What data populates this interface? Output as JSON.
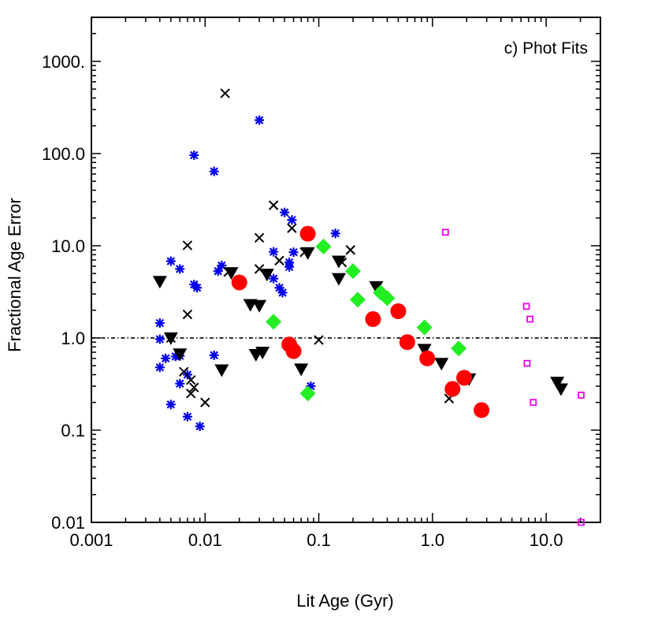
{
  "chart_data": {
    "type": "scatter",
    "title": "",
    "panel_label": "c) Phot Fits",
    "xlabel": "Lit Age (Gyr)",
    "ylabel": "Fractional Age Error",
    "xscale": "log",
    "yscale": "log",
    "xlim": [
      0.001,
      30
    ],
    "ylim": [
      0.01,
      3000
    ],
    "x_ticks": [
      {
        "value": 0.001,
        "label": "0.001"
      },
      {
        "value": 0.01,
        "label": "0.01"
      },
      {
        "value": 0.1,
        "label": "0.1"
      },
      {
        "value": 1,
        "label": "1.0"
      },
      {
        "value": 10,
        "label": "10.0"
      }
    ],
    "y_ticks": [
      {
        "value": 0.01,
        "label": "0.01"
      },
      {
        "value": 0.1,
        "label": "0.1"
      },
      {
        "value": 1,
        "label": "1.0"
      },
      {
        "value": 10,
        "label": "10.0"
      },
      {
        "value": 100,
        "label": "100.0"
      },
      {
        "value": 1000,
        "label": "1000."
      }
    ],
    "reference_line": {
      "y": 1.0,
      "style": "dash-dot"
    },
    "colors": {
      "blue": "#0000ee",
      "black": "#000000",
      "red": "#ff0000",
      "green": "#22ee22",
      "magenta": "#ee00ee"
    },
    "series": [
      {
        "name": "blue-asterisk",
        "marker": "asterisk",
        "color": "#0000ee",
        "points": [
          [
            0.004,
            1.45
          ],
          [
            0.004,
            0.97
          ],
          [
            0.004,
            0.48
          ],
          [
            0.0045,
            0.6
          ],
          [
            0.005,
            6.8
          ],
          [
            0.005,
            0.19
          ],
          [
            0.0055,
            0.63
          ],
          [
            0.006,
            5.6
          ],
          [
            0.006,
            0.64
          ],
          [
            0.006,
            0.32
          ],
          [
            0.007,
            0.4
          ],
          [
            0.007,
            0.14
          ],
          [
            0.008,
            96
          ],
          [
            0.008,
            3.8
          ],
          [
            0.0085,
            3.5
          ],
          [
            0.009,
            0.11
          ],
          [
            0.012,
            64
          ],
          [
            0.012,
            0.65
          ],
          [
            0.013,
            5.3
          ],
          [
            0.014,
            6.1
          ],
          [
            0.03,
            230
          ],
          [
            0.04,
            8.6
          ],
          [
            0.045,
            3.5
          ],
          [
            0.048,
            3.1
          ],
          [
            0.05,
            23
          ],
          [
            0.055,
            5.9
          ],
          [
            0.055,
            6.6
          ],
          [
            0.058,
            19
          ],
          [
            0.06,
            8.5
          ],
          [
            0.14,
            13.6
          ],
          [
            0.085,
            0.3
          ],
          [
            0.04,
            4.4
          ]
        ]
      },
      {
        "name": "black-x",
        "marker": "x",
        "color": "#000000",
        "points": [
          [
            0.015,
            450
          ],
          [
            0.007,
            10.1
          ],
          [
            0.007,
            1.8
          ],
          [
            0.0065,
            0.43
          ],
          [
            0.0075,
            0.35
          ],
          [
            0.008,
            0.29
          ],
          [
            0.0075,
            0.25
          ],
          [
            0.01,
            0.2
          ],
          [
            0.016,
            5.2
          ],
          [
            0.03,
            12.2
          ],
          [
            0.03,
            5.6
          ],
          [
            0.04,
            27.5
          ],
          [
            0.045,
            6.9
          ],
          [
            0.058,
            15.5
          ],
          [
            0.075,
            8.5
          ],
          [
            0.1,
            0.95
          ],
          [
            0.16,
            6.6
          ],
          [
            0.19,
            9.0
          ],
          [
            1.4,
            0.22
          ],
          [
            0.005,
            1.0
          ]
        ]
      },
      {
        "name": "black-triangle",
        "marker": "triangle-down",
        "color": "#000000",
        "points": [
          [
            0.004,
            4.1
          ],
          [
            0.005,
            1.0
          ],
          [
            0.006,
            0.67
          ],
          [
            0.014,
            0.45
          ],
          [
            0.017,
            5.1
          ],
          [
            0.025,
            2.3
          ],
          [
            0.03,
            2.25
          ],
          [
            0.028,
            0.66
          ],
          [
            0.032,
            0.7
          ],
          [
            0.035,
            4.9
          ],
          [
            0.07,
            0.46
          ],
          [
            0.08,
            8.4
          ],
          [
            0.15,
            4.4
          ],
          [
            0.15,
            6.8
          ],
          [
            0.32,
            3.6
          ],
          [
            0.85,
            0.75
          ],
          [
            1.2,
            0.53
          ],
          [
            2.1,
            0.36
          ],
          [
            12.5,
            0.33
          ],
          [
            13.5,
            0.28
          ]
        ]
      },
      {
        "name": "red-circle",
        "marker": "circle",
        "color": "#ff0000",
        "points": [
          [
            0.02,
            4.0
          ],
          [
            0.055,
            0.85
          ],
          [
            0.06,
            0.72
          ],
          [
            0.08,
            13.5
          ],
          [
            0.3,
            1.6
          ],
          [
            0.5,
            1.95
          ],
          [
            0.6,
            0.9
          ],
          [
            0.9,
            0.6
          ],
          [
            1.5,
            0.28
          ],
          [
            1.9,
            0.37
          ],
          [
            2.7,
            0.165
          ]
        ]
      },
      {
        "name": "green-diamond",
        "marker": "diamond",
        "color": "#22ee22",
        "points": [
          [
            0.04,
            1.5
          ],
          [
            0.08,
            0.25
          ],
          [
            0.11,
            9.8
          ],
          [
            0.2,
            5.3
          ],
          [
            0.22,
            2.6
          ],
          [
            0.35,
            3.1
          ],
          [
            0.4,
            2.7
          ],
          [
            0.85,
            1.3
          ],
          [
            1.7,
            0.77
          ]
        ]
      },
      {
        "name": "magenta-square",
        "marker": "square-open",
        "color": "#ee00ee",
        "points": [
          [
            1.3,
            14
          ],
          [
            6.7,
            2.2
          ],
          [
            7.2,
            1.6
          ],
          [
            6.8,
            0.53
          ],
          [
            7.7,
            0.2
          ],
          [
            20.3,
            0.24
          ],
          [
            20.3,
            0.01
          ]
        ]
      }
    ]
  }
}
